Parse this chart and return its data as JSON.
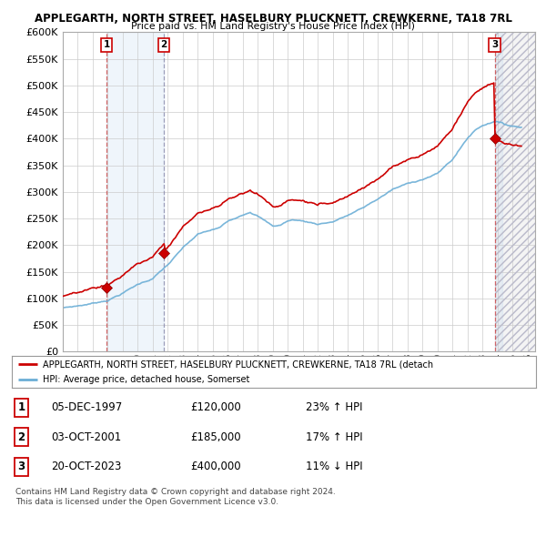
{
  "title1": "APPLEGARTH, NORTH STREET, HASELBURY PLUCKNETT, CREWKERNE, TA18 7RL",
  "title2": "Price paid vs. HM Land Registry's House Price Index (HPI)",
  "ylabel_ticks": [
    "£0",
    "£50K",
    "£100K",
    "£150K",
    "£200K",
    "£250K",
    "£300K",
    "£350K",
    "£400K",
    "£450K",
    "£500K",
    "£550K",
    "£600K"
  ],
  "ytick_vals": [
    0,
    50000,
    100000,
    150000,
    200000,
    250000,
    300000,
    350000,
    400000,
    450000,
    500000,
    550000,
    600000
  ],
  "xlim_start": 1995.0,
  "xlim_end": 2026.5,
  "ylim": [
    0,
    600000
  ],
  "sale_dates": [
    1997.92,
    2001.75,
    2023.8
  ],
  "sale_prices": [
    120000,
    185000,
    400000
  ],
  "sale_labels": [
    "1",
    "2",
    "3"
  ],
  "hpi_line_color": "#6baed6",
  "price_line_color": "#cc0000",
  "marker_color": "#cc0000",
  "legend_label1": "APPLEGARTH, NORTH STREET, HASELBURY PLUCKNETT, CREWKERNE, TA18 7RL (detach",
  "legend_label2": "HPI: Average price, detached house, Somerset",
  "table_rows": [
    {
      "num": "1",
      "date": "05-DEC-1997",
      "price": "£120,000",
      "hpi": "23% ↑ HPI"
    },
    {
      "num": "2",
      "date": "03-OCT-2001",
      "price": "£185,000",
      "hpi": "17% ↑ HPI"
    },
    {
      "num": "3",
      "date": "20-OCT-2023",
      "price": "£400,000",
      "hpi": "11% ↓ HPI"
    }
  ],
  "footer1": "Contains HM Land Registry data © Crown copyright and database right 2024.",
  "footer2": "This data is licensed under the Open Government Licence v3.0.",
  "bg_color": "#ffffff",
  "plot_bg_color": "#ffffff",
  "grid_color": "#cccccc",
  "shade_color": "#ddeeff"
}
